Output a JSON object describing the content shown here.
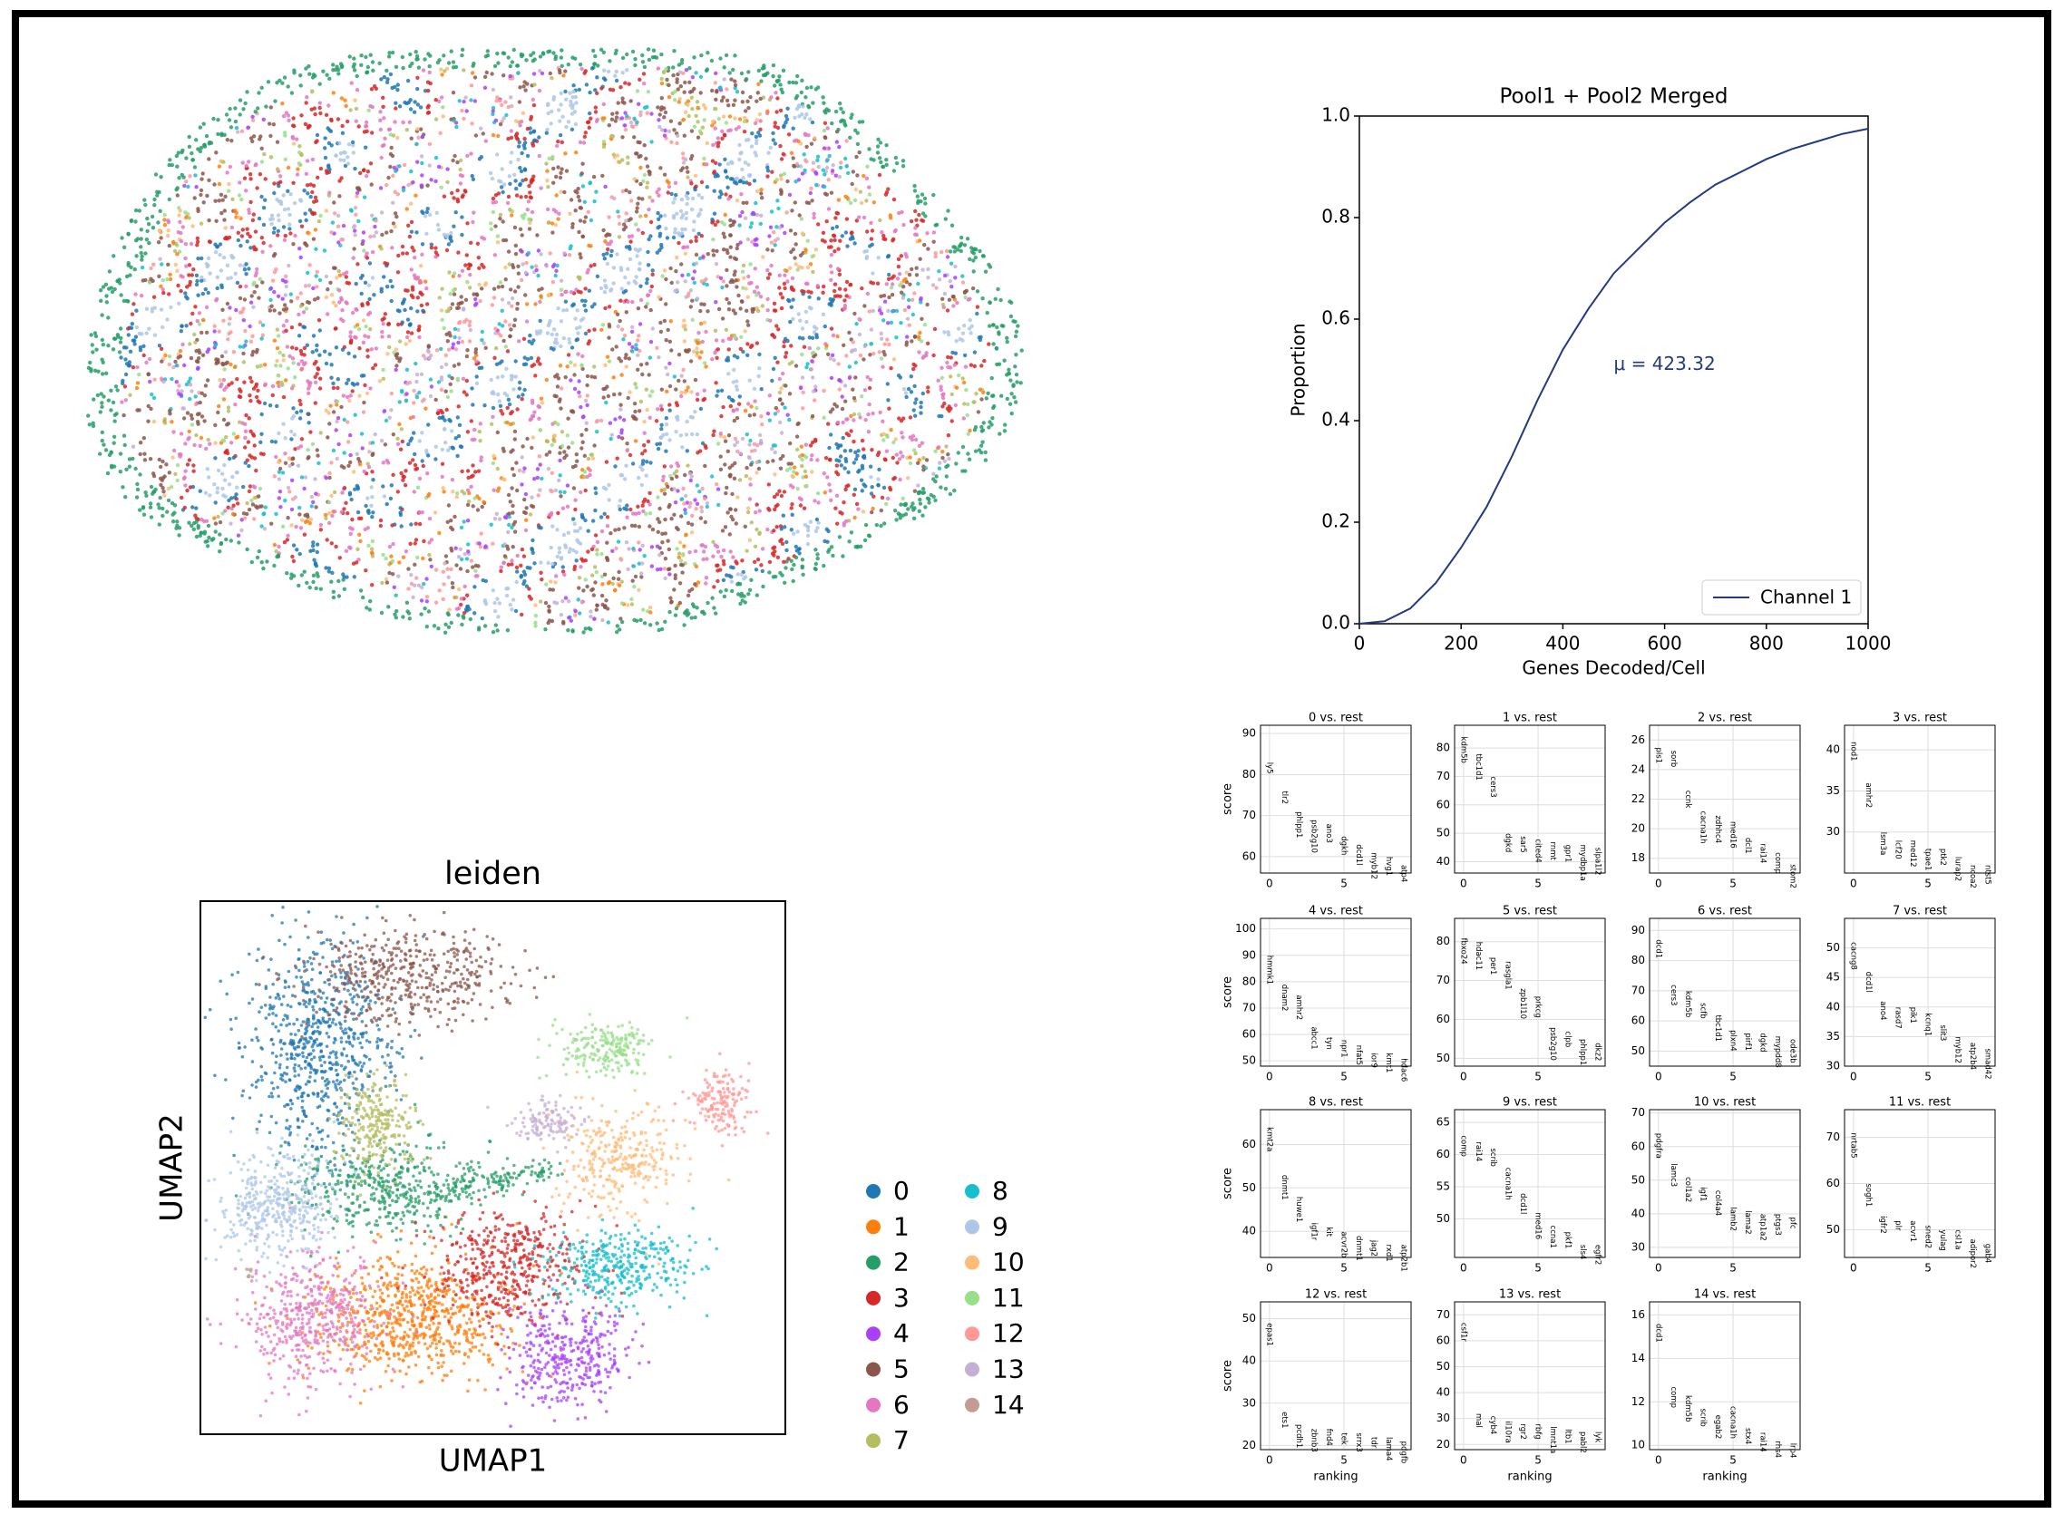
{
  "chart_data": [
    {
      "type": "line",
      "title": "Pool1 + Pool2 Merged",
      "xlabel": "Genes Decoded/Cell",
      "ylabel": "Proportion",
      "annotation": "μ = 423.32",
      "x": [
        0,
        50,
        100,
        150,
        200,
        250,
        300,
        350,
        400,
        450,
        500,
        550,
        600,
        650,
        700,
        750,
        800,
        850,
        900,
        950,
        1000
      ],
      "series": [
        {
          "name": "Channel 1",
          "color": "#233a80",
          "values": [
            0,
            0.005,
            0.03,
            0.08,
            0.15,
            0.23,
            0.33,
            0.44,
            0.54,
            0.62,
            0.69,
            0.74,
            0.79,
            0.83,
            0.865,
            0.89,
            0.915,
            0.935,
            0.95,
            0.965,
            0.975
          ]
        }
      ],
      "xlim": [
        0,
        1000
      ],
      "ylim": [
        0,
        1
      ],
      "xticks": [
        0,
        200,
        400,
        600,
        800,
        1000
      ],
      "yticks": [
        {
          "value": 0,
          "label": "0.0"
        },
        {
          "value": 0.2,
          "label": "0.2"
        },
        {
          "value": 0.4,
          "label": "0.4"
        },
        {
          "value": 0.6,
          "label": "0.6"
        },
        {
          "value": 0.8,
          "label": "0.8"
        },
        {
          "value": 1,
          "label": "1.0"
        }
      ],
      "legend": "lower right"
    },
    {
      "type": "umap",
      "title": "leiden",
      "xlabel": "UMAP1",
      "ylabel": "UMAP2",
      "categories": [
        "0",
        "1",
        "2",
        "3",
        "4",
        "5",
        "6",
        "7",
        "8",
        "9",
        "10",
        "11",
        "12",
        "13",
        "14"
      ],
      "colors": [
        "#1f77b4",
        "#ff7f0e",
        "#279e68",
        "#d62728",
        "#aa40fc",
        "#8c564b",
        "#e377c2",
        "#b5bd61",
        "#17becf",
        "#aec7e8",
        "#ffbb78",
        "#98df8a",
        "#ff9896",
        "#c5b0d5",
        "#c49c94"
      ]
    },
    {
      "type": "rank_genes",
      "title": "0 vs. rest",
      "ylabel": "score",
      "categories": [
        "ly5",
        "tlr2",
        "phlpp1",
        "psb2g10",
        "ano3",
        "dgkh",
        "dcd1l",
        "myb12",
        "hvg1",
        "atp4"
      ],
      "values": [
        83,
        76,
        71,
        69,
        68,
        65,
        63,
        61,
        60,
        58
      ],
      "ylim": [
        56,
        92
      ],
      "yticks": [
        60,
        70,
        80,
        90
      ],
      "xlim": [
        -0.6,
        9.5
      ],
      "xticks": [
        0,
        5
      ]
    },
    {
      "type": "rank_genes",
      "title": "1 vs. rest",
      "categories": [
        "kdm5b",
        "tbc1d1",
        "cers3",
        "dgkd",
        "sar5",
        "cited4",
        "rnmt",
        "gpr1",
        "mydbp1a",
        "slpa1l2"
      ],
      "values": [
        84,
        78,
        70,
        50,
        49,
        48,
        47,
        46,
        46,
        45
      ],
      "ylim": [
        36,
        88
      ],
      "yticks": [
        40,
        50,
        60,
        70,
        80
      ],
      "xlim": [
        -0.6,
        9.5
      ],
      "xticks": [
        0,
        5
      ]
    },
    {
      "type": "rank_genes",
      "title": "2 vs. rest",
      "categories": [
        "pls1",
        "sorb",
        "ccnk",
        "cacna1h",
        "zdhhc4",
        "med16",
        "dcl1",
        "rai14",
        "comp",
        "stom2"
      ],
      "values": [
        25.5,
        25.3,
        22.6,
        21.2,
        20.9,
        20.5,
        19.4,
        19,
        18.4,
        17.6
      ],
      "ylim": [
        17,
        27
      ],
      "yticks": [
        18,
        20,
        22,
        24,
        26
      ],
      "xlim": [
        -0.6,
        9.5
      ],
      "xticks": [
        0,
        5
      ]
    },
    {
      "type": "rank_genes",
      "title": "3 vs. rest",
      "categories": [
        "nod1",
        "amhr2",
        "lsm3a",
        "lcf20",
        "med12",
        "tpae1",
        "ptk2",
        "lurap2",
        "ncoa2",
        "ntst5"
      ],
      "values": [
        41,
        36,
        30,
        29,
        29,
        28,
        28,
        27,
        26,
        26
      ],
      "ylim": [
        25,
        43
      ],
      "yticks": [
        30,
        35,
        40
      ],
      "xlim": [
        -0.6,
        9.5
      ],
      "xticks": [
        0,
        5
      ]
    },
    {
      "type": "rank_genes",
      "title": "4 vs. rest",
      "ylabel": "score",
      "categories": [
        "hmmk1",
        "dnam2",
        "amhr2",
        "abcc1",
        "tyn",
        "npr1",
        "nfat5",
        "ior9",
        "kmt1",
        "hdac6"
      ],
      "values": [
        90,
        79,
        75,
        63,
        59,
        58,
        56,
        53,
        53,
        51
      ],
      "ylim": [
        48,
        104
      ],
      "yticks": [
        50,
        60,
        70,
        80,
        90,
        100
      ],
      "xlim": [
        -0.6,
        9.5
      ],
      "xticks": [
        0,
        5
      ]
    },
    {
      "type": "rank_genes",
      "title": "5 vs. rest",
      "categories": [
        "fbxo24",
        "hdac11",
        "per1",
        "rasgla1",
        "zpb1l10",
        "prkcg",
        "psb2g10",
        "clpb",
        "phlpp1",
        "dkz2"
      ],
      "values": [
        81,
        80,
        76,
        75,
        68,
        66,
        58,
        57,
        55,
        54
      ],
      "ylim": [
        48,
        86
      ],
      "yticks": [
        50,
        60,
        70,
        80
      ],
      "xlim": [
        -0.6,
        9.5
      ],
      "xticks": [
        0,
        5
      ]
    },
    {
      "type": "rank_genes",
      "title": "6 vs. rest",
      "categories": [
        "dcd1",
        "cers3",
        "kdm5b",
        "scfb",
        "tbc1d1",
        "plxn4",
        "pirf1",
        "dgkd",
        "mypdd8",
        "ode3b"
      ],
      "values": [
        87,
        72,
        70,
        66,
        62,
        57,
        56,
        56,
        55,
        54
      ],
      "ylim": [
        45,
        94
      ],
      "yticks": [
        50,
        60,
        70,
        80,
        90
      ],
      "xlim": [
        -0.6,
        9.5
      ],
      "xticks": [
        0,
        5
      ]
    },
    {
      "type": "rank_genes",
      "title": "7 vs. rest",
      "categories": [
        "cacng8",
        "dcd1l",
        "ano4",
        "rasd7",
        "pik1",
        "kcnq1",
        "slit3",
        "myb12",
        "atp2b4",
        "smad42"
      ],
      "values": [
        51,
        46,
        41,
        40,
        40,
        39,
        37,
        35,
        34,
        33
      ],
      "ylim": [
        30,
        55
      ],
      "yticks": [
        30,
        35,
        40,
        45,
        50
      ],
      "xlim": [
        -0.6,
        9.5
      ],
      "xticks": [
        0,
        5
      ]
    },
    {
      "type": "rank_genes",
      "title": "8 vs. rest",
      "ylabel": "score",
      "categories": [
        "kmt2a",
        "dnmt1",
        "huwe1",
        "igf1r",
        "kit",
        "acvr2b",
        "dnmt1",
        "jag2",
        "rxd1",
        "atp2b1"
      ],
      "values": [
        64,
        53,
        48,
        42,
        41,
        40,
        39,
        38,
        37,
        37
      ],
      "ylim": [
        34,
        68
      ],
      "yticks": [
        40,
        50,
        60
      ],
      "xlim": [
        -0.6,
        9.5
      ],
      "xticks": [
        0,
        5
      ]
    },
    {
      "type": "rank_genes",
      "title": "9 vs. rest",
      "categories": [
        "comp",
        "rai14",
        "scrib",
        "cacna1h",
        "dcd1l",
        "med16",
        "ccna1",
        "pkf1",
        "sls4",
        "egfr2"
      ],
      "values": [
        63,
        62,
        61,
        58,
        54,
        51,
        49,
        48,
        46,
        46
      ],
      "ylim": [
        44,
        67
      ],
      "yticks": [
        50,
        55,
        60,
        65
      ],
      "xlim": [
        -0.6,
        9.5
      ],
      "xticks": [
        0,
        5
      ]
    },
    {
      "type": "rank_genes",
      "title": "10 vs. rest",
      "categories": [
        "pdgfra",
        "lamc3",
        "col1a2",
        "igf1",
        "col4a4",
        "lamb2",
        "lama2",
        "atp1a2",
        "ptgs3",
        "pfc"
      ],
      "values": [
        64,
        55,
        51,
        48,
        47,
        42,
        41,
        40,
        40,
        39
      ],
      "ylim": [
        27,
        71
      ],
      "yticks": [
        30,
        40,
        50,
        60,
        70
      ],
      "xlim": [
        -0.6,
        9.5
      ],
      "xticks": [
        0,
        5
      ]
    },
    {
      "type": "rank_genes",
      "title": "11 vs. rest",
      "categories": [
        "nrtab5",
        "sogh1",
        "igfr2",
        "plr",
        "acvr1",
        "sned2",
        "yulag",
        "csl1a",
        "adipor2",
        "gab4"
      ],
      "values": [
        71,
        60,
        53,
        52,
        52,
        51,
        50,
        50,
        48,
        47
      ],
      "ylim": [
        44,
        76
      ],
      "yticks": [
        50,
        60,
        70
      ],
      "xlim": [
        -0.6,
        9.5
      ],
      "xticks": [
        0,
        5
      ]
    },
    {
      "type": "rank_genes",
      "title": "12 vs. rest",
      "ylabel": "score",
      "xlabel": "ranking",
      "categories": [
        "epas1",
        "ets1",
        "pcdh1",
        "zbnb3",
        "fnd4",
        "tek",
        "srrx3",
        "tdr",
        "lama4",
        "pdgfb"
      ],
      "values": [
        49,
        28,
        25,
        24,
        24,
        23,
        23,
        22,
        22,
        21
      ],
      "ylim": [
        19,
        54
      ],
      "yticks": [
        20,
        30,
        40,
        50
      ],
      "xlim": [
        -0.6,
        9.5
      ],
      "xticks": [
        0,
        5
      ]
    },
    {
      "type": "rank_genes",
      "title": "13 vs. rest",
      "xlabel": "ranking",
      "categories": [
        "csf1r",
        "mal",
        "cyb4",
        "il10ra",
        "rgr2",
        "rbfg",
        "lmnt1a",
        "ltb1",
        "pabl2",
        "lyk"
      ],
      "values": [
        67,
        32,
        31,
        29,
        28,
        28,
        27,
        26,
        25,
        25
      ],
      "ylim": [
        18,
        75
      ],
      "yticks": [
        20,
        30,
        40,
        50,
        60,
        70
      ],
      "xlim": [
        -0.6,
        9.5
      ],
      "xticks": [
        0,
        5
      ]
    },
    {
      "type": "rank_genes",
      "title": "14 vs. rest",
      "xlabel": "ranking",
      "categories": [
        "dcd1",
        "comp",
        "kdm5b",
        "scrib",
        "egab2",
        "cacna1h",
        "stx4",
        "rai14",
        "rhs4",
        "lrp4"
      ],
      "values": [
        15.6,
        12.7,
        12.3,
        11.7,
        11.4,
        11.8,
        10.8,
        10.6,
        10.2,
        10.1
      ],
      "ylim": [
        9.8,
        16.6
      ],
      "yticks": [
        10,
        12,
        14,
        16
      ],
      "xlim": [
        -0.6,
        9.5
      ],
      "xticks": [
        0,
        5
      ]
    }
  ]
}
